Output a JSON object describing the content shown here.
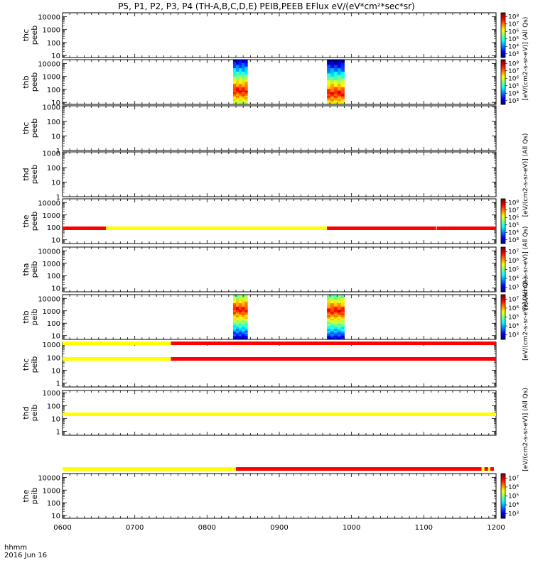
{
  "title": "P5, P1, P2, P3, P4 (TH-A,B,C,D,E) PEIB,PEEB EFlux eV/(eV*cm²*sec*sr)",
  "footer": {
    "time_label": "hhmm",
    "date_label": "2016 Jun 16"
  },
  "colors": {
    "yellow": "#ffff00",
    "red": "#ff0000"
  },
  "colorbar_labels": {
    "peeb": "[eV/(cm2-s-sr-eV)]  (All Qs)",
    "peib": "[eV/(cm2-s-sr-eV)]  (All Qs)",
    "peib_tha": "[eV/(cm2-s-sr-eV)]  (All Qs)"
  },
  "chart_data": {
    "type": "heatmap",
    "xaxis": {
      "min": 600,
      "max": 1200,
      "ticks": [
        "0600",
        "0700",
        "0800",
        "0900",
        "1000",
        "1100",
        "1200"
      ]
    },
    "panels": [
      {
        "label": [
          "thc",
          "peeb"
        ],
        "ylim": [
          7,
          20000
        ],
        "yticks": [
          "10",
          "100",
          "1000",
          "10000"
        ],
        "bands": [],
        "colorbar": {
          "exp_min": 3,
          "exp_max": 8,
          "labels": [
            "10³",
            "10⁴",
            "10⁵",
            "10⁶",
            "10⁷",
            "10⁸"
          ]
        }
      },
      {
        "label": [
          "thb",
          "peeb"
        ],
        "ylim": [
          7,
          20000
        ],
        "yticks": [
          "10",
          "100",
          "1000",
          "10000"
        ],
        "bands": [
          {
            "t0": 836,
            "t1": 856,
            "core_log": 1.9
          },
          {
            "t0": 966,
            "t1": 990,
            "core_log": 1.7
          }
        ],
        "colorbar": {
          "exp_min": 3,
          "exp_max": 8,
          "labels": [
            "10³",
            "10⁴",
            "10⁵",
            "10⁶",
            "10⁷",
            "10⁸"
          ]
        }
      },
      {
        "label": [
          "thc",
          "peeb"
        ],
        "ylim": [
          1,
          1200
        ],
        "yticks": [
          "1",
          "10",
          "100",
          "1000"
        ],
        "bands": [],
        "colorbar": null
      },
      {
        "label": [
          "thd",
          "peeb"
        ],
        "ylim": [
          1,
          1200
        ],
        "yticks": [
          "1",
          "10",
          "100",
          "1000"
        ],
        "bands": [],
        "colorbar": null
      },
      {
        "label": [
          "the",
          "peeb"
        ],
        "ylim": [
          5,
          20000
        ],
        "yticks": [
          "10",
          "100",
          "1000",
          "10000"
        ],
        "bands": [],
        "colorbar": {
          "exp_min": 3,
          "exp_max": 8,
          "labels": [
            "10³",
            "10⁴",
            "10⁵",
            "10⁶",
            "10⁷",
            "10⁸"
          ]
        }
      },
      {
        "label": [
          "tha",
          "peib"
        ],
        "ylim": [
          5,
          20000
        ],
        "yticks": [
          "10",
          "100",
          "1000",
          "10000"
        ],
        "bands": [],
        "colorbar": {
          "exp_min": 3,
          "exp_max": 7,
          "labels": [
            "10³",
            "10⁴",
            "10⁵",
            "10⁶",
            "10⁷"
          ]
        }
      },
      {
        "label": [
          "thb",
          "peib"
        ],
        "ylim": [
          5,
          20000
        ],
        "yticks": [
          "10",
          "100",
          "1000",
          "10000"
        ],
        "bands": [
          {
            "t0": 836,
            "t1": 856,
            "core_log": 3.1
          },
          {
            "t0": 966,
            "t1": 990,
            "core_log": 3.0
          }
        ],
        "colorbar": {
          "exp_min": 3,
          "exp_max": 7,
          "labels": [
            "10³",
            "10⁴",
            "10⁵",
            "10⁶",
            "10⁷"
          ]
        }
      },
      {
        "label": [
          "thc",
          "peib"
        ],
        "ylim": [
          0.5,
          1500
        ],
        "yticks": [
          "1",
          "10",
          "100",
          "1000"
        ],
        "bands": [],
        "colorbar": null
      },
      {
        "label": [
          "thd",
          "peib"
        ],
        "ylim": [
          0.5,
          1500
        ],
        "yticks": [
          "1",
          "10",
          "100",
          "1000"
        ],
        "bands": [],
        "colorbar": null
      },
      {
        "label": [
          "the",
          "peib"
        ],
        "ylim": [
          6,
          20000
        ],
        "yticks": [
          "10",
          "100",
          "1000",
          "10000"
        ],
        "bands": [],
        "colorbar": {
          "exp_min": 3,
          "exp_max": 7,
          "labels": [
            "10³",
            "10⁴",
            "10⁵",
            "10⁶",
            "10⁷"
          ]
        }
      }
    ],
    "mode_bars": [
      {
        "segments": [
          {
            "t0": 600,
            "t1": 660,
            "color": "red"
          },
          {
            "t0": 660,
            "t1": 966,
            "color": "yellow"
          },
          {
            "t0": 966,
            "t1": 1117,
            "color": "red"
          },
          {
            "t0": 1118,
            "t1": 1200,
            "color": "red"
          }
        ]
      },
      {
        "segments": [
          {
            "t0": 600,
            "t1": 750,
            "color": "yellow"
          },
          {
            "t0": 750,
            "t1": 1200,
            "color": "red"
          }
        ]
      },
      {
        "segments": [
          {
            "t0": 600,
            "t1": 750,
            "color": "yellow"
          },
          {
            "t0": 750,
            "t1": 1200,
            "color": "red"
          }
        ]
      },
      {
        "segments": [
          {
            "t0": 600,
            "t1": 1200,
            "color": "yellow"
          }
        ]
      },
      {
        "segments": [
          {
            "t0": 600,
            "t1": 840,
            "color": "yellow"
          },
          {
            "t0": 840,
            "t1": 1180,
            "color": "red"
          },
          {
            "t0": 1180,
            "t1": 1184,
            "color": "yellow"
          },
          {
            "t0": 1184,
            "t1": 1189,
            "color": "red"
          },
          {
            "t0": 1189,
            "t1": 1192,
            "color": "yellow"
          },
          {
            "t0": 1192,
            "t1": 1197,
            "color": "red"
          }
        ]
      }
    ]
  }
}
